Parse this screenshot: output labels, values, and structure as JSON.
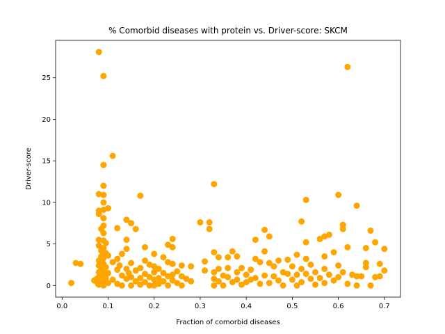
{
  "chart_data": {
    "type": "scatter",
    "title": "% Comorbid diseases with protein vs. Driver-score: SKCM",
    "xlabel": "Fraction of comorbid diseases",
    "ylabel": "Driver-score",
    "xlim": [
      -0.014,
      0.735
    ],
    "ylim": [
      -1.4,
      29.5
    ],
    "xticks": [
      0.0,
      0.1,
      0.2,
      0.3,
      0.4,
      0.5,
      0.6,
      0.7
    ],
    "xtick_labels": [
      "0.0",
      "0.1",
      "0.2",
      "0.3",
      "0.4",
      "0.5",
      "0.6",
      "0.7"
    ],
    "yticks": [
      0,
      5,
      10,
      15,
      20,
      25
    ],
    "ytick_labels": [
      "0",
      "5",
      "10",
      "15",
      "20",
      "25"
    ],
    "grid": false,
    "color": "#FFA500",
    "points": [
      [
        0.02,
        0.3
      ],
      [
        0.03,
        2.7
      ],
      [
        0.04,
        2.6
      ],
      [
        0.07,
        0.6
      ],
      [
        0.075,
        0.8
      ],
      [
        0.078,
        0.2
      ],
      [
        0.08,
        28.1
      ],
      [
        0.08,
        11.0
      ],
      [
        0.08,
        9.0
      ],
      [
        0.08,
        8.6
      ],
      [
        0.08,
        5.5
      ],
      [
        0.08,
        4.8
      ],
      [
        0.08,
        3.0
      ],
      [
        0.08,
        2.4
      ],
      [
        0.08,
        1.6
      ],
      [
        0.08,
        1.0
      ],
      [
        0.08,
        0.5
      ],
      [
        0.08,
        0.1
      ],
      [
        0.085,
        6.8
      ],
      [
        0.085,
        4.2
      ],
      [
        0.085,
        3.5
      ],
      [
        0.085,
        2.0
      ],
      [
        0.085,
        1.2
      ],
      [
        0.085,
        0.4
      ],
      [
        0.09,
        25.2
      ],
      [
        0.09,
        14.5
      ],
      [
        0.09,
        12.0
      ],
      [
        0.09,
        10.9
      ],
      [
        0.09,
        10.0
      ],
      [
        0.09,
        9.1
      ],
      [
        0.09,
        8.1
      ],
      [
        0.09,
        7.2
      ],
      [
        0.09,
        6.3
      ],
      [
        0.09,
        5.4
      ],
      [
        0.09,
        4.5
      ],
      [
        0.09,
        3.3
      ],
      [
        0.09,
        2.6
      ],
      [
        0.09,
        1.8
      ],
      [
        0.09,
        1.1
      ],
      [
        0.09,
        0.6
      ],
      [
        0.09,
        0.0
      ],
      [
        0.095,
        5.1
      ],
      [
        0.095,
        3.9
      ],
      [
        0.095,
        2.2
      ],
      [
        0.095,
        0.9
      ],
      [
        0.1,
        9.3
      ],
      [
        0.1,
        3.6
      ],
      [
        0.1,
        1.5
      ],
      [
        0.1,
        0.3
      ],
      [
        0.11,
        15.6
      ],
      [
        0.11,
        2.8
      ],
      [
        0.11,
        0.7
      ],
      [
        0.12,
        6.9
      ],
      [
        0.12,
        3.2
      ],
      [
        0.12,
        1.9
      ],
      [
        0.12,
        0.2
      ],
      [
        0.125,
        2.4
      ],
      [
        0.13,
        3.8
      ],
      [
        0.13,
        1.2
      ],
      [
        0.13,
        0.0
      ],
      [
        0.14,
        7.9
      ],
      [
        0.14,
        5.5
      ],
      [
        0.14,
        4.4
      ],
      [
        0.14,
        2.0
      ],
      [
        0.14,
        0.8
      ],
      [
        0.145,
        1.5
      ],
      [
        0.15,
        7.5
      ],
      [
        0.15,
        2.7
      ],
      [
        0.15,
        1.0
      ],
      [
        0.15,
        0.0
      ],
      [
        0.16,
        6.8
      ],
      [
        0.16,
        1.8
      ],
      [
        0.16,
        0.5
      ],
      [
        0.17,
        10.8
      ],
      [
        0.17,
        2.1
      ],
      [
        0.17,
        0.9
      ],
      [
        0.17,
        0.1
      ],
      [
        0.18,
        4.6
      ],
      [
        0.18,
        3.0
      ],
      [
        0.18,
        1.4
      ],
      [
        0.18,
        0.4
      ],
      [
        0.19,
        2.5
      ],
      [
        0.19,
        1.0
      ],
      [
        0.19,
        0.0
      ],
      [
        0.2,
        3.8
      ],
      [
        0.2,
        2.3
      ],
      [
        0.2,
        1.6
      ],
      [
        0.2,
        0.7
      ],
      [
        0.2,
        0.0
      ],
      [
        0.21,
        2.0
      ],
      [
        0.21,
        0.9
      ],
      [
        0.21,
        0.2
      ],
      [
        0.22,
        3.4
      ],
      [
        0.22,
        1.5
      ],
      [
        0.22,
        0.5
      ],
      [
        0.23,
        4.9
      ],
      [
        0.23,
        2.8
      ],
      [
        0.23,
        1.1
      ],
      [
        0.23,
        0.0
      ],
      [
        0.24,
        5.6
      ],
      [
        0.24,
        4.6
      ],
      [
        0.24,
        2.6
      ],
      [
        0.24,
        1.3
      ],
      [
        0.24,
        0.6
      ],
      [
        0.25,
        1.7
      ],
      [
        0.25,
        0.3
      ],
      [
        0.26,
        2.4
      ],
      [
        0.26,
        1.1
      ],
      [
        0.26,
        0.0
      ],
      [
        0.27,
        0.8
      ],
      [
        0.28,
        2.3
      ],
      [
        0.28,
        0.5
      ],
      [
        0.3,
        7.6
      ],
      [
        0.31,
        2.9
      ],
      [
        0.31,
        1.8
      ],
      [
        0.32,
        7.6
      ],
      [
        0.32,
        6.8
      ],
      [
        0.33,
        12.2
      ],
      [
        0.33,
        4.0
      ],
      [
        0.33,
        1.6
      ],
      [
        0.33,
        0.8
      ],
      [
        0.33,
        0.0
      ],
      [
        0.34,
        3.4
      ],
      [
        0.34,
        2.0
      ],
      [
        0.34,
        0.5
      ],
      [
        0.35,
        1.2
      ],
      [
        0.35,
        0.0
      ],
      [
        0.36,
        3.4
      ],
      [
        0.36,
        2.1
      ],
      [
        0.36,
        1.0
      ],
      [
        0.37,
        4.1
      ],
      [
        0.37,
        0.4
      ],
      [
        0.38,
        3.5
      ],
      [
        0.38,
        1.6
      ],
      [
        0.38,
        0.7
      ],
      [
        0.39,
        2.1
      ],
      [
        0.39,
        0.1
      ],
      [
        0.4,
        1.3
      ],
      [
        0.4,
        0.4
      ],
      [
        0.41,
        1.9
      ],
      [
        0.41,
        0.7
      ],
      [
        0.42,
        5.5
      ],
      [
        0.42,
        3.2
      ],
      [
        0.42,
        0.9
      ],
      [
        0.43,
        2.8
      ],
      [
        0.43,
        0.2
      ],
      [
        0.44,
        6.7
      ],
      [
        0.44,
        4.1
      ],
      [
        0.44,
        1.2
      ],
      [
        0.45,
        5.9
      ],
      [
        0.45,
        2.7
      ],
      [
        0.45,
        0.3
      ],
      [
        0.46,
        2.3
      ],
      [
        0.46,
        1.1
      ],
      [
        0.47,
        3.0
      ],
      [
        0.47,
        0.6
      ],
      [
        0.48,
        1.6
      ],
      [
        0.48,
        0.0
      ],
      [
        0.49,
        3.1
      ],
      [
        0.49,
        1.4
      ],
      [
        0.5,
        2.3
      ],
      [
        0.5,
        0.7
      ],
      [
        0.51,
        3.7
      ],
      [
        0.51,
        1.3
      ],
      [
        0.51,
        0.0
      ],
      [
        0.52,
        7.7
      ],
      [
        0.52,
        2.0
      ],
      [
        0.52,
        0.4
      ],
      [
        0.53,
        10.3
      ],
      [
        0.53,
        5.2
      ],
      [
        0.53,
        3.2
      ],
      [
        0.53,
        1.4
      ],
      [
        0.54,
        2.5
      ],
      [
        0.54,
        0.8
      ],
      [
        0.55,
        1.6
      ],
      [
        0.55,
        0.1
      ],
      [
        0.56,
        5.6
      ],
      [
        0.56,
        0.9
      ],
      [
        0.57,
        5.9
      ],
      [
        0.57,
        3.5
      ],
      [
        0.57,
        2.0
      ],
      [
        0.57,
        0.3
      ],
      [
        0.58,
        6.1
      ],
      [
        0.58,
        1.3
      ],
      [
        0.59,
        4.0
      ],
      [
        0.59,
        0.6
      ],
      [
        0.6,
        10.9
      ],
      [
        0.6,
        2.4
      ],
      [
        0.6,
        1.0
      ],
      [
        0.61,
        7.3
      ],
      [
        0.61,
        6.8
      ],
      [
        0.61,
        1.6
      ],
      [
        0.62,
        26.3
      ],
      [
        0.62,
        4.6
      ],
      [
        0.62,
        0.2
      ],
      [
        0.63,
        1.3
      ],
      [
        0.64,
        9.6
      ],
      [
        0.64,
        1.1
      ],
      [
        0.64,
        0.0
      ],
      [
        0.65,
        1.1
      ],
      [
        0.66,
        4.5
      ],
      [
        0.66,
        2.7
      ],
      [
        0.66,
        2.2
      ],
      [
        0.67,
        6.6
      ],
      [
        0.67,
        0.0
      ],
      [
        0.68,
        5.2
      ],
      [
        0.68,
        1.0
      ],
      [
        0.69,
        2.6
      ],
      [
        0.69,
        1.1
      ],
      [
        0.7,
        4.4
      ],
      [
        0.7,
        1.8
      ]
    ]
  }
}
